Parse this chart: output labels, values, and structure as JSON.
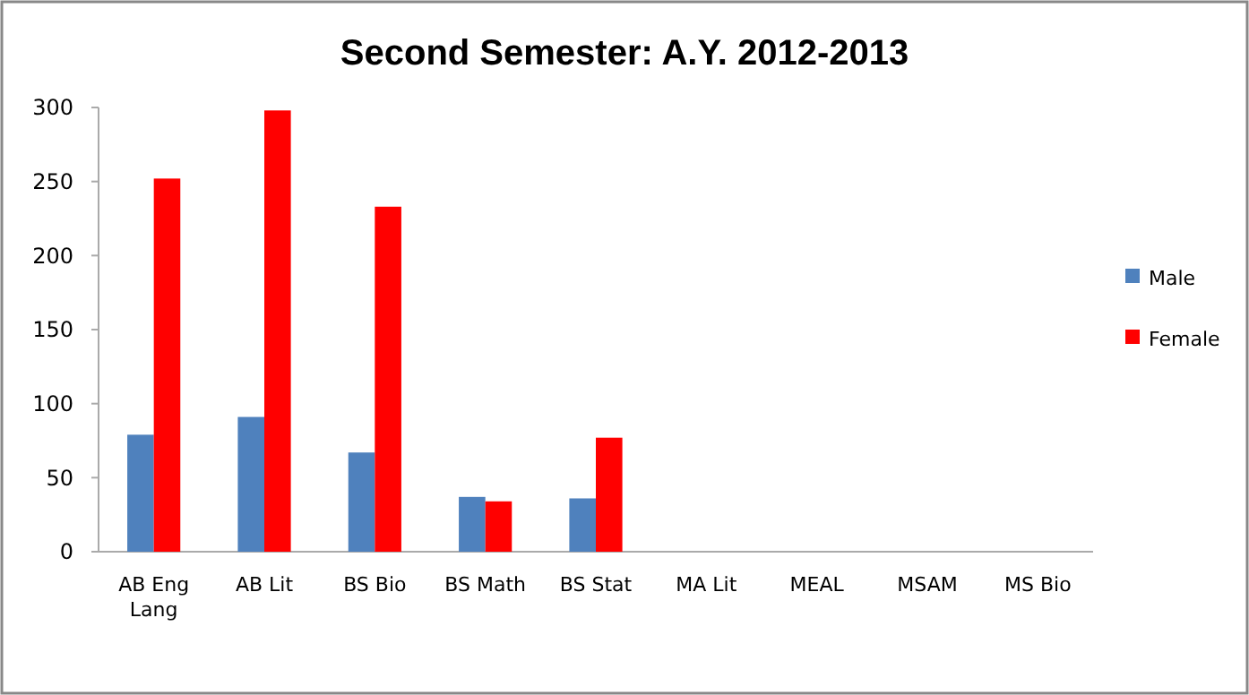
{
  "chart_data": {
    "type": "bar",
    "title": "Second Semester: A.Y. 2012-2013",
    "categories": [
      "AB Eng Lang",
      "AB Lit",
      "BS Bio",
      "BS Math",
      "BS Stat",
      "MA Lit",
      "MEAL",
      "MSAM",
      "MS Bio"
    ],
    "series": [
      {
        "name": "Male",
        "color": "#4f81bd",
        "values": [
          79,
          91,
          67,
          37,
          36,
          0,
          0,
          0,
          0
        ]
      },
      {
        "name": "Female",
        "color": "#ff0000",
        "values": [
          252,
          298,
          233,
          34,
          77,
          0,
          0,
          0,
          0
        ]
      }
    ],
    "ylim": [
      0,
      300
    ],
    "yticks": [
      0,
      50,
      100,
      150,
      200,
      250,
      300
    ],
    "grid": false,
    "legend": "right"
  }
}
